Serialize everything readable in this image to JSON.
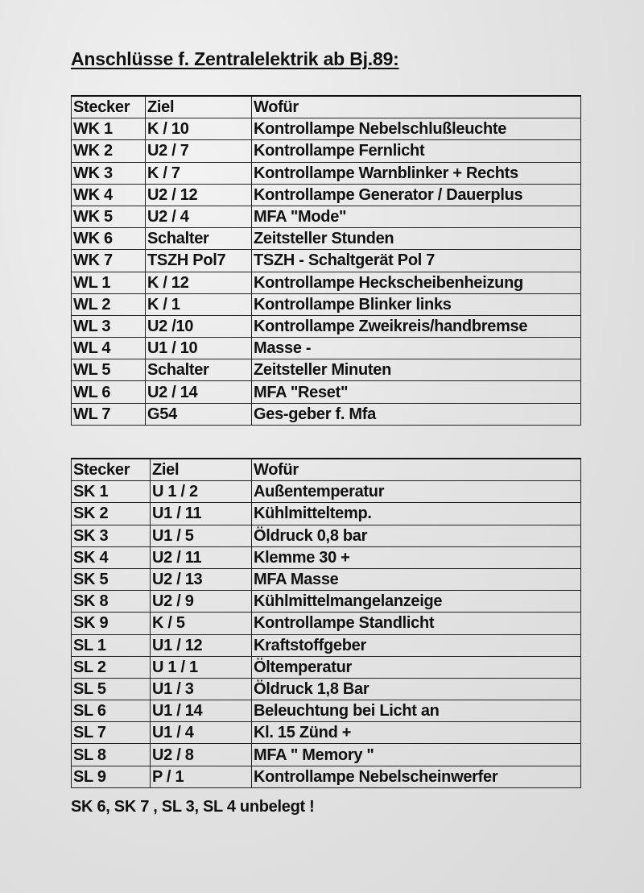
{
  "title": "Anschlüsse f. Zentralelektrik ab Bj.89:",
  "table1": {
    "headers": [
      "Stecker",
      "Ziel",
      "Wofür"
    ],
    "rows": [
      [
        "WK 1",
        "K / 10",
        "Kontrollampe Nebelschlußleuchte"
      ],
      [
        "WK 2",
        "U2 / 7",
        "Kontrollampe Fernlicht"
      ],
      [
        "WK 3",
        "K / 7",
        "Kontrollampe Warnblinker + Rechts"
      ],
      [
        "WK 4",
        "U2 / 12",
        "Kontrollampe Generator / Dauerplus"
      ],
      [
        "WK 5",
        "U2 / 4",
        "MFA \"Mode\""
      ],
      [
        "WK 6",
        "Schalter",
        "Zeitsteller Stunden"
      ],
      [
        "WK 7",
        "TSZH Pol7",
        "TSZH - Schaltgerät Pol 7"
      ],
      [
        "WL 1",
        "K / 12",
        "Kontrollampe Heckscheibenheizung"
      ],
      [
        "WL 2",
        "K / 1",
        "Kontrollampe Blinker links"
      ],
      [
        "WL 3",
        "U2 /10",
        "Kontrollampe Zweikreis/handbremse"
      ],
      [
        "WL 4",
        "U1 / 10",
        "Masse -"
      ],
      [
        "WL 5",
        "Schalter",
        "Zeitsteller Minuten"
      ],
      [
        "WL 6",
        "U2 / 14",
        "MFA \"Reset\""
      ],
      [
        "WL 7",
        "G54",
        "Ges-geber f. Mfa"
      ]
    ]
  },
  "table2": {
    "headers": [
      "Stecker",
      "Ziel",
      "Wofür"
    ],
    "rows": [
      [
        "SK 1",
        "U 1 / 2",
        "Außentemperatur"
      ],
      [
        "SK 2",
        "U1 / 11",
        "Kühlmitteltemp."
      ],
      [
        "SK 3",
        "U1 / 5",
        "Öldruck 0,8 bar"
      ],
      [
        "SK 4",
        "U2 / 11",
        "Klemme 30 +"
      ],
      [
        "SK 5",
        "U2 / 13",
        "MFA Masse"
      ],
      [
        "SK 8",
        "U2 / 9",
        "Kühlmittelmangelanzeige"
      ],
      [
        "SK 9",
        "K / 5",
        "Kontrollampe Standlicht"
      ],
      [
        "SL 1",
        "U1 / 12",
        "Kraftstoffgeber"
      ],
      [
        "SL 2",
        "U 1 / 1",
        "Öltemperatur"
      ],
      [
        "SL 5",
        "U1 / 3",
        "Öldruck 1,8 Bar"
      ],
      [
        "SL 6",
        "U1 / 14",
        "Beleuchtung bei Licht an"
      ],
      [
        "SL 7",
        "U1 / 4",
        "Kl. 15 Zünd +"
      ],
      [
        "SL 8",
        "U2 / 8",
        "MFA \" Memory \""
      ],
      [
        "SL 9",
        "P / 1",
        "Kontrollampe Nebelscheinwerfer"
      ]
    ]
  },
  "note": "SK 6, SK 7 , SL 3, SL 4 unbelegt !"
}
